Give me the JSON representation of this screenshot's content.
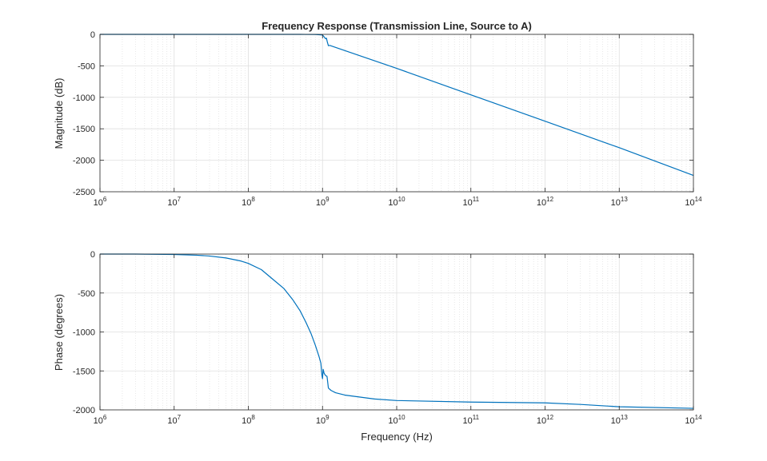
{
  "chart_data": [
    {
      "type": "line",
      "title": "Frequency Response (Transmission Line, Source to A)",
      "xlabel": "",
      "ylabel": "Magnitude (dB)",
      "xscale": "log",
      "xlim": [
        1000000.0,
        100000000000000.0
      ],
      "ylim": [
        -2500,
        0
      ],
      "xticks": [
        {
          "base": "10",
          "exp": "6"
        },
        {
          "base": "10",
          "exp": "7"
        },
        {
          "base": "10",
          "exp": "8"
        },
        {
          "base": "10",
          "exp": "9"
        },
        {
          "base": "10",
          "exp": "10"
        },
        {
          "base": "10",
          "exp": "11"
        },
        {
          "base": "10",
          "exp": "12"
        },
        {
          "base": "10",
          "exp": "13"
        },
        {
          "base": "10",
          "exp": "14"
        }
      ],
      "yticks": [
        "0",
        "-500",
        "-1000",
        "-1500",
        "-2000",
        "-2500"
      ],
      "grid": true,
      "color": "#0072BD",
      "x": [
        1000000.0,
        10000000.0,
        100000000.0,
        500000000.0,
        800000000.0,
        1000000000.0,
        1050000000.0,
        1100000000.0,
        1130000000.0,
        1160000000.0,
        1200000000.0,
        1250000000.0,
        10000000000.0,
        100000000000.0,
        1000000000000.0,
        10000000000000.0,
        100000000000000.0
      ],
      "y": [
        0,
        0,
        0,
        0,
        -2,
        -10,
        -40,
        -70,
        -60,
        -120,
        -180,
        -175,
        -540,
        -960,
        -1380,
        -1800,
        -2240
      ]
    },
    {
      "type": "line",
      "title": "",
      "xlabel": "Frequency (Hz)",
      "ylabel": "Phase (degrees)",
      "xscale": "log",
      "xlim": [
        1000000.0,
        100000000000000.0
      ],
      "ylim": [
        -2000,
        0
      ],
      "xticks": [
        {
          "base": "10",
          "exp": "6"
        },
        {
          "base": "10",
          "exp": "7"
        },
        {
          "base": "10",
          "exp": "8"
        },
        {
          "base": "10",
          "exp": "9"
        },
        {
          "base": "10",
          "exp": "10"
        },
        {
          "base": "10",
          "exp": "11"
        },
        {
          "base": "10",
          "exp": "12"
        },
        {
          "base": "10",
          "exp": "13"
        },
        {
          "base": "10",
          "exp": "14"
        }
      ],
      "yticks": [
        "0",
        "-500",
        "-1000",
        "-1500",
        "-2000"
      ],
      "grid": true,
      "color": "#0072BD",
      "x": [
        1000000.0,
        3000000.0,
        10000000.0,
        20000000.0,
        30000000.0,
        50000000.0,
        80000000.0,
        100000000.0,
        150000000.0,
        200000000.0,
        300000000.0,
        400000000.0,
        500000000.0,
        600000000.0,
        700000000.0,
        800000000.0,
        900000000.0,
        950000000.0,
        980000000.0,
        1000000000.0,
        1020000000.0,
        1050000000.0,
        1100000000.0,
        1150000000.0,
        1200000000.0,
        1300000000.0,
        1500000000.0,
        2000000000.0,
        5000000000.0,
        10000000000.0,
        100000000000.0,
        1000000000000.0,
        3000000000000.0,
        10000000000000.0,
        100000000000000.0
      ],
      "y": [
        0,
        0,
        -5,
        -15,
        -25,
        -50,
        -90,
        -120,
        -200,
        -300,
        -440,
        -590,
        -730,
        -880,
        -1020,
        -1170,
        -1320,
        -1400,
        -1550,
        -1600,
        -1480,
        -1530,
        -1560,
        -1570,
        -1720,
        -1750,
        -1780,
        -1810,
        -1860,
        -1880,
        -1900,
        -1910,
        -1930,
        -1960,
        -1980
      ]
    }
  ]
}
